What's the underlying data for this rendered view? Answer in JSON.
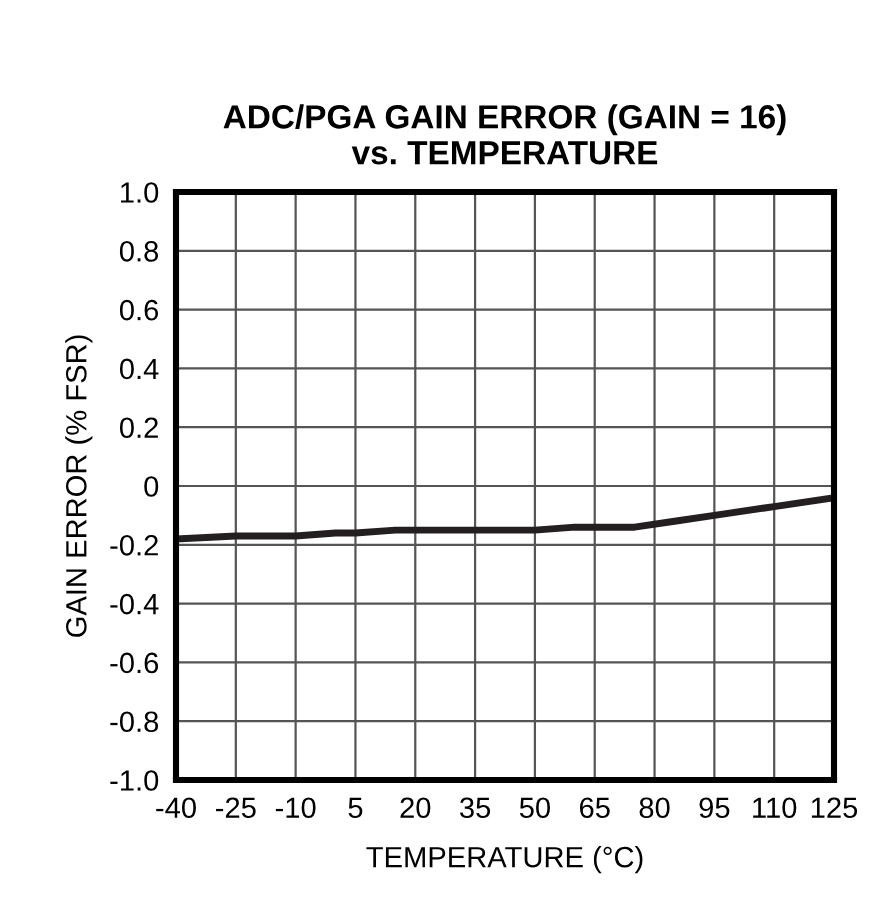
{
  "chart_data": {
    "type": "line",
    "title": "ADC/PGA GAIN ERROR (GAIN = 16)\nvs. TEMPERATURE",
    "xlabel": "TEMPERATURE (°C)",
    "ylabel": "GAIN ERROR (% FSR)",
    "x": [
      -40,
      -25,
      -10,
      0,
      5,
      15,
      35,
      50,
      60,
      75,
      85,
      95,
      110,
      125
    ],
    "series": [
      {
        "color": "#231f20",
        "values": [
          -0.18,
          -0.17,
          -0.17,
          -0.16,
          -0.16,
          -0.15,
          -0.15,
          -0.15,
          -0.14,
          -0.14,
          -0.12,
          -0.1,
          -0.07,
          -0.04
        ]
      }
    ],
    "xlim": [
      -40,
      125
    ],
    "xticks": [
      -40,
      -25,
      -10,
      5,
      20,
      35,
      50,
      65,
      80,
      95,
      110,
      125
    ],
    "ylim": [
      -1.0,
      1.0
    ],
    "yticks": [
      {
        "value": -1.0,
        "label": "-1.0"
      },
      {
        "value": -0.8,
        "label": "-0.8"
      },
      {
        "value": -0.6,
        "label": "-0.6"
      },
      {
        "value": -0.4,
        "label": "-0.4"
      },
      {
        "value": -0.2,
        "label": "-0.2"
      },
      {
        "value": 0,
        "label": "0"
      },
      {
        "value": 0.2,
        "label": "0.2"
      },
      {
        "value": 0.4,
        "label": "0.4"
      },
      {
        "value": 0.6,
        "label": "0.6"
      },
      {
        "value": 0.8,
        "label": "0.8"
      },
      {
        "value": 1.0,
        "label": "1.0"
      }
    ],
    "grid": true,
    "line_style": "solid"
  }
}
